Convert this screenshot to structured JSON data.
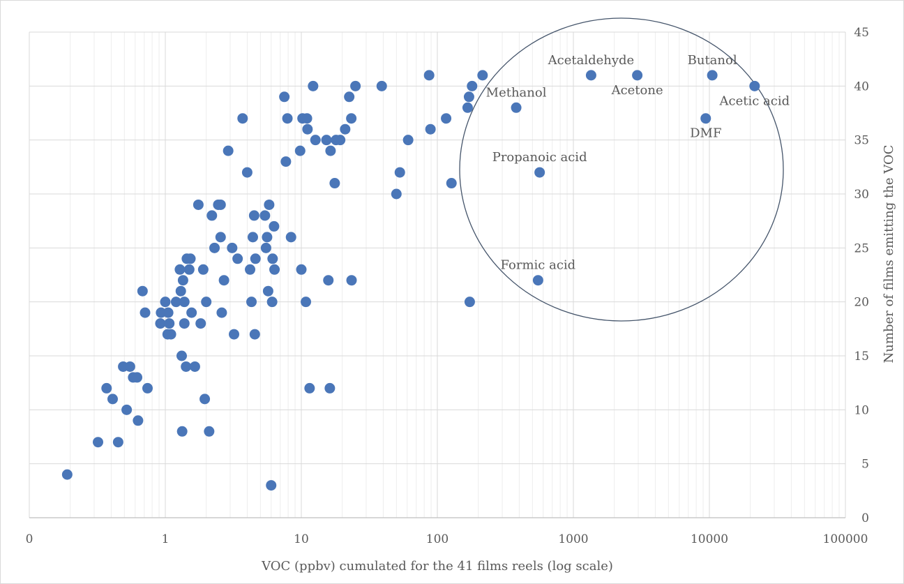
{
  "chart_data": {
    "type": "scatter",
    "xlabel": "VOC (ppbv)  cumulated for the 41 films reels (log  scale)",
    "ylabel": "Number of  films emitting the VOC",
    "x_scale": "log",
    "xlim": [
      0.1,
      100000
    ],
    "ylim": [
      0,
      45
    ],
    "x_tick_labels": [
      "0",
      "1",
      "10",
      "100",
      "1000",
      "10000",
      "100000"
    ],
    "y_tick_labels": [
      "0",
      "5",
      "10",
      "15",
      "20",
      "25",
      "30",
      "35",
      "40",
      "45"
    ],
    "y_axis_position": "right",
    "grid": true,
    "legend": "none",
    "marker_color": "#4a76b8",
    "ellipse_color": "#44546a",
    "points": [
      {
        "x": 0.19,
        "y": 4
      },
      {
        "x": 0.32,
        "y": 7
      },
      {
        "x": 0.45,
        "y": 7
      },
      {
        "x": 0.37,
        "y": 12
      },
      {
        "x": 0.41,
        "y": 11
      },
      {
        "x": 0.49,
        "y": 14
      },
      {
        "x": 0.55,
        "y": 14
      },
      {
        "x": 0.52,
        "y": 10
      },
      {
        "x": 0.58,
        "y": 13
      },
      {
        "x": 0.62,
        "y": 13
      },
      {
        "x": 0.63,
        "y": 9
      },
      {
        "x": 0.68,
        "y": 21
      },
      {
        "x": 0.71,
        "y": 19
      },
      {
        "x": 0.74,
        "y": 12
      },
      {
        "x": 0.92,
        "y": 18
      },
      {
        "x": 0.93,
        "y": 19
      },
      {
        "x": 1.0,
        "y": 20
      },
      {
        "x": 1.05,
        "y": 19
      },
      {
        "x": 1.04,
        "y": 17
      },
      {
        "x": 1.07,
        "y": 18
      },
      {
        "x": 1.1,
        "y": 17
      },
      {
        "x": 1.2,
        "y": 20
      },
      {
        "x": 1.28,
        "y": 23
      },
      {
        "x": 1.3,
        "y": 21
      },
      {
        "x": 1.32,
        "y": 15
      },
      {
        "x": 1.33,
        "y": 8
      },
      {
        "x": 1.35,
        "y": 22
      },
      {
        "x": 1.38,
        "y": 20
      },
      {
        "x": 1.38,
        "y": 18
      },
      {
        "x": 1.42,
        "y": 14
      },
      {
        "x": 1.44,
        "y": 24
      },
      {
        "x": 1.5,
        "y": 23
      },
      {
        "x": 1.53,
        "y": 24
      },
      {
        "x": 1.56,
        "y": 19
      },
      {
        "x": 1.65,
        "y": 14
      },
      {
        "x": 1.75,
        "y": 29
      },
      {
        "x": 1.82,
        "y": 18
      },
      {
        "x": 1.9,
        "y": 23
      },
      {
        "x": 1.95,
        "y": 11
      },
      {
        "x": 2.0,
        "y": 20
      },
      {
        "x": 2.1,
        "y": 8
      },
      {
        "x": 2.2,
        "y": 28
      },
      {
        "x": 2.3,
        "y": 25
      },
      {
        "x": 2.45,
        "y": 29
      },
      {
        "x": 2.55,
        "y": 29
      },
      {
        "x": 2.55,
        "y": 26
      },
      {
        "x": 2.6,
        "y": 19
      },
      {
        "x": 2.7,
        "y": 22
      },
      {
        "x": 2.9,
        "y": 34
      },
      {
        "x": 3.1,
        "y": 25
      },
      {
        "x": 3.2,
        "y": 17
      },
      {
        "x": 3.4,
        "y": 24
      },
      {
        "x": 3.7,
        "y": 37
      },
      {
        "x": 4.0,
        "y": 32
      },
      {
        "x": 4.2,
        "y": 23
      },
      {
        "x": 4.3,
        "y": 20
      },
      {
        "x": 4.4,
        "y": 26
      },
      {
        "x": 4.5,
        "y": 28
      },
      {
        "x": 4.55,
        "y": 17
      },
      {
        "x": 4.6,
        "y": 24
      },
      {
        "x": 5.4,
        "y": 28
      },
      {
        "x": 5.5,
        "y": 25
      },
      {
        "x": 5.6,
        "y": 26
      },
      {
        "x": 5.7,
        "y": 21
      },
      {
        "x": 5.8,
        "y": 29
      },
      {
        "x": 6.0,
        "y": 3
      },
      {
        "x": 6.1,
        "y": 20
      },
      {
        "x": 6.15,
        "y": 24
      },
      {
        "x": 6.3,
        "y": 27
      },
      {
        "x": 6.35,
        "y": 23
      },
      {
        "x": 7.5,
        "y": 39
      },
      {
        "x": 7.7,
        "y": 33
      },
      {
        "x": 7.9,
        "y": 37
      },
      {
        "x": 8.4,
        "y": 26
      },
      {
        "x": 9.8,
        "y": 34
      },
      {
        "x": 10.0,
        "y": 23
      },
      {
        "x": 10.2,
        "y": 37
      },
      {
        "x": 10.8,
        "y": 20
      },
      {
        "x": 11.0,
        "y": 37
      },
      {
        "x": 11.1,
        "y": 36
      },
      {
        "x": 11.5,
        "y": 12
      },
      {
        "x": 12.2,
        "y": 40
      },
      {
        "x": 12.7,
        "y": 35
      },
      {
        "x": 15.3,
        "y": 35
      },
      {
        "x": 15.8,
        "y": 22
      },
      {
        "x": 16.2,
        "y": 12
      },
      {
        "x": 16.4,
        "y": 34
      },
      {
        "x": 17.6,
        "y": 31
      },
      {
        "x": 18.0,
        "y": 35
      },
      {
        "x": 19.3,
        "y": 35
      },
      {
        "x": 21.0,
        "y": 36
      },
      {
        "x": 22.5,
        "y": 39
      },
      {
        "x": 23.3,
        "y": 37
      },
      {
        "x": 23.4,
        "y": 22
      },
      {
        "x": 25.0,
        "y": 40
      },
      {
        "x": 39.0,
        "y": 40
      },
      {
        "x": 50.0,
        "y": 30
      },
      {
        "x": 53.0,
        "y": 32
      },
      {
        "x": 61.0,
        "y": 35
      },
      {
        "x": 87.0,
        "y": 41
      },
      {
        "x": 89.0,
        "y": 36
      },
      {
        "x": 116.0,
        "y": 37
      },
      {
        "x": 127.0,
        "y": 31
      },
      {
        "x": 167.0,
        "y": 38
      },
      {
        "x": 171.0,
        "y": 39
      },
      {
        "x": 173.0,
        "y": 20
      },
      {
        "x": 180.0,
        "y": 40
      },
      {
        "x": 215.0,
        "y": 41
      },
      {
        "x": 380.0,
        "y": 38
      },
      {
        "x": 550.0,
        "y": 22
      },
      {
        "x": 565.0,
        "y": 32
      },
      {
        "x": 1350.0,
        "y": 41
      },
      {
        "x": 2950.0,
        "y": 41
      },
      {
        "x": 9400.0,
        "y": 37
      },
      {
        "x": 10500.0,
        "y": 41
      },
      {
        "x": 21500.0,
        "y": 40
      }
    ],
    "annotations": [
      {
        "text": "Acetaldehyde",
        "x": 1350,
        "y": 41,
        "pos": "above"
      },
      {
        "text": "Butanol",
        "x": 10500,
        "y": 41,
        "pos": "above"
      },
      {
        "text": "Acetone",
        "x": 2950,
        "y": 41,
        "pos": "below"
      },
      {
        "text": "Methanol",
        "x": 380,
        "y": 38,
        "pos": "above"
      },
      {
        "text": "Acetic  acid",
        "x": 21500,
        "y": 40,
        "pos": "below"
      },
      {
        "text": "DMF",
        "x": 9400,
        "y": 37,
        "pos": "below"
      },
      {
        "text": "Propanoic acid",
        "x": 565,
        "y": 32,
        "pos": "above"
      },
      {
        "text": "Formic acid",
        "x": 550,
        "y": 22,
        "pos": "above"
      }
    ]
  }
}
